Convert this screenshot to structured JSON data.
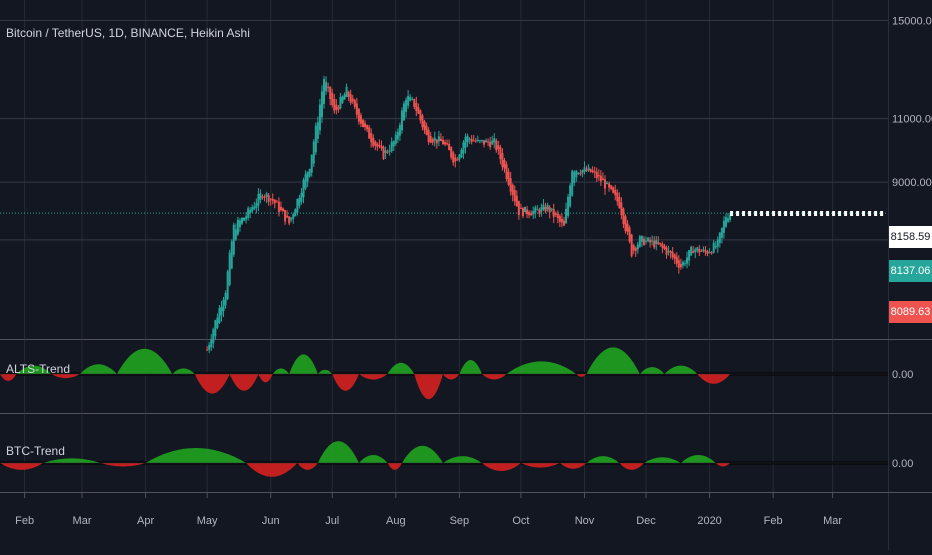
{
  "title": "Bitcoin / TetherUS, 1D, BINANCE, Heikin Ashi",
  "colors": {
    "background": "#131722",
    "grid": "#363a45",
    "up": "#26a69a",
    "down": "#ef5350",
    "osc_up": "#1fa31f",
    "osc_down": "#d62020",
    "current_line": "#26a69a"
  },
  "price_tags": {
    "current": "8158.59",
    "open": "8137.06",
    "close": "8089.63"
  },
  "chart_data": [
    {
      "type": "candlestick",
      "name": "main-price",
      "ylim": [
        5500,
        16000
      ],
      "yticks": [
        "15000.00",
        "11000.00",
        "9000.00"
      ],
      "ytick_values": [
        15000,
        11000,
        9000
      ],
      "current_price": 8158.59,
      "x_range": [
        "2019-01-20",
        "2020-03-28"
      ],
      "xticks": [
        "Feb",
        "Mar",
        "Apr",
        "May",
        "Jun",
        "Jul",
        "Aug",
        "Sep",
        "Oct",
        "Nov",
        "Dec",
        "2020",
        "Feb",
        "Mar"
      ],
      "close_path": [
        [
          "2019-05-01",
          5300
        ],
        [
          "2019-05-10",
          6400
        ],
        [
          "2019-05-14",
          7800
        ],
        [
          "2019-05-20",
          8100
        ],
        [
          "2019-05-28",
          8700
        ],
        [
          "2019-06-02",
          8500
        ],
        [
          "2019-06-10",
          7900
        ],
        [
          "2019-06-14",
          8500
        ],
        [
          "2019-06-20",
          9500
        ],
        [
          "2019-06-24",
          11000
        ],
        [
          "2019-06-27",
          12500
        ],
        [
          "2019-07-02",
          11200
        ],
        [
          "2019-07-08",
          12000
        ],
        [
          "2019-07-12",
          11300
        ],
        [
          "2019-07-18",
          10500
        ],
        [
          "2019-07-26",
          9800
        ],
        [
          "2019-08-01",
          10300
        ],
        [
          "2019-08-06",
          11800
        ],
        [
          "2019-08-10",
          11500
        ],
        [
          "2019-08-16",
          10400
        ],
        [
          "2019-08-24",
          10200
        ],
        [
          "2019-08-30",
          9600
        ],
        [
          "2019-09-04",
          10400
        ],
        [
          "2019-09-10",
          10200
        ],
        [
          "2019-09-18",
          10200
        ],
        [
          "2019-09-24",
          9200
        ],
        [
          "2019-09-30",
          8200
        ],
        [
          "2019-10-08",
          8200
        ],
        [
          "2019-10-14",
          8300
        ],
        [
          "2019-10-22",
          7800
        ],
        [
          "2019-10-26",
          9400
        ],
        [
          "2019-11-04",
          9300
        ],
        [
          "2019-11-10",
          9000
        ],
        [
          "2019-11-18",
          8400
        ],
        [
          "2019-11-24",
          7200
        ],
        [
          "2019-11-28",
          7500
        ],
        [
          "2019-12-06",
          7400
        ],
        [
          "2019-12-12",
          7200
        ],
        [
          "2019-12-18",
          6900
        ],
        [
          "2019-12-24",
          7300
        ],
        [
          "2019-12-30",
          7200
        ],
        [
          "2020-01-05",
          7400
        ],
        [
          "2020-01-09",
          8100
        ],
        [
          "2020-01-11",
          8150
        ]
      ]
    },
    {
      "type": "bar",
      "name": "ALTS-Trend",
      "baseline": "0.00",
      "segments": [
        [
          "2019-01-20",
          "2019-01-28",
          -0.25
        ],
        [
          "2019-01-28",
          "2019-02-14",
          0.3
        ],
        [
          "2019-02-14",
          "2019-02-28",
          -0.15
        ],
        [
          "2019-02-28",
          "2019-03-18",
          0.35
        ],
        [
          "2019-03-18",
          "2019-04-14",
          0.9
        ],
        [
          "2019-04-14",
          "2019-04-25",
          0.2
        ],
        [
          "2019-04-25",
          "2019-05-12",
          -0.7
        ],
        [
          "2019-05-12",
          "2019-05-26",
          -0.6
        ],
        [
          "2019-05-26",
          "2019-06-02",
          -0.3
        ],
        [
          "2019-06-02",
          "2019-06-10",
          0.2
        ],
        [
          "2019-06-10",
          "2019-06-24",
          0.7
        ],
        [
          "2019-06-24",
          "2019-07-01",
          0.15
        ],
        [
          "2019-07-01",
          "2019-07-14",
          -0.6
        ],
        [
          "2019-07-14",
          "2019-07-28",
          -0.2
        ],
        [
          "2019-07-28",
          "2019-08-10",
          0.4
        ],
        [
          "2019-08-10",
          "2019-08-24",
          -0.9
        ],
        [
          "2019-08-24",
          "2019-09-01",
          -0.2
        ],
        [
          "2019-09-01",
          "2019-09-12",
          0.5
        ],
        [
          "2019-09-12",
          "2019-09-24",
          -0.2
        ],
        [
          "2019-09-24",
          "2019-10-28",
          0.45
        ],
        [
          "2019-10-28",
          "2019-11-02",
          -0.1
        ],
        [
          "2019-11-02",
          "2019-11-28",
          0.95
        ],
        [
          "2019-11-28",
          "2019-12-10",
          0.25
        ],
        [
          "2019-12-10",
          "2019-12-26",
          0.3
        ],
        [
          "2019-12-26",
          "2020-01-11",
          -0.35
        ]
      ]
    },
    {
      "type": "bar",
      "name": "BTC-Trend",
      "baseline": "0.00",
      "segments": [
        [
          "2019-01-20",
          "2019-02-10",
          -0.3
        ],
        [
          "2019-02-10",
          "2019-03-10",
          0.2
        ],
        [
          "2019-03-10",
          "2019-04-01",
          -0.15
        ],
        [
          "2019-04-01",
          "2019-05-20",
          0.65
        ],
        [
          "2019-05-20",
          "2019-06-14",
          -0.6
        ],
        [
          "2019-06-14",
          "2019-06-24",
          -0.3
        ],
        [
          "2019-06-24",
          "2019-07-14",
          0.95
        ],
        [
          "2019-07-14",
          "2019-07-28",
          0.35
        ],
        [
          "2019-07-28",
          "2019-08-04",
          -0.3
        ],
        [
          "2019-08-04",
          "2019-08-24",
          0.75
        ],
        [
          "2019-08-24",
          "2019-09-12",
          0.3
        ],
        [
          "2019-09-12",
          "2019-10-01",
          -0.35
        ],
        [
          "2019-10-01",
          "2019-10-20",
          -0.2
        ],
        [
          "2019-10-20",
          "2019-11-02",
          -0.25
        ],
        [
          "2019-11-02",
          "2019-11-18",
          0.3
        ],
        [
          "2019-11-18",
          "2019-11-30",
          -0.3
        ],
        [
          "2019-11-30",
          "2019-12-18",
          0.25
        ],
        [
          "2019-12-18",
          "2020-01-04",
          0.35
        ],
        [
          "2020-01-04",
          "2020-01-11",
          -0.15
        ]
      ]
    }
  ]
}
